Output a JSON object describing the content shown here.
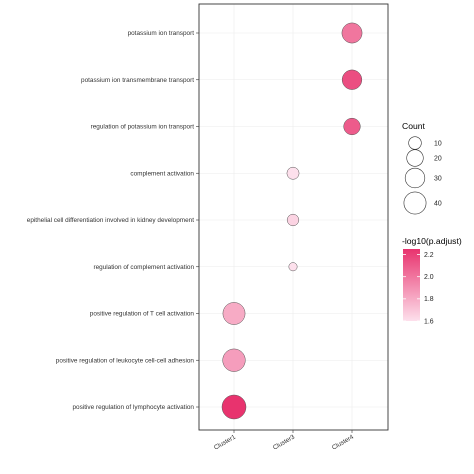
{
  "chart_data": {
    "type": "scatter",
    "chart_kind": "dotplot",
    "title": "",
    "xlabel": "",
    "ylabel": "",
    "x_categories": [
      "Cluster1",
      "Cluster3",
      "Cluster4"
    ],
    "y_categories": [
      "potassium ion transport",
      "potassium ion transmembrane transport",
      "regulation of potassium ion transport",
      "complement activation",
      "epithelial cell differentiation involved in kidney development",
      "regulation of complement activation",
      "positive regulation of T cell activation",
      "positive regulation of leukocyte cell-cell adhesion",
      "positive regulation of lymphocyte activation"
    ],
    "points": [
      {
        "x": "Cluster4",
        "y": "potassium ion transport",
        "count": 32,
        "neg_log10_padj": 2.0
      },
      {
        "x": "Cluster4",
        "y": "potassium ion transmembrane transport",
        "count": 30,
        "neg_log10_padj": 2.15
      },
      {
        "x": "Cluster4",
        "y": "regulation of potassium ion transport",
        "count": 20,
        "neg_log10_padj": 2.1
      },
      {
        "x": "Cluster3",
        "y": "complement activation",
        "count": 9,
        "neg_log10_padj": 1.6
      },
      {
        "x": "Cluster3",
        "y": "epithelial cell differentiation involved in kidney development",
        "count": 8,
        "neg_log10_padj": 1.65
      },
      {
        "x": "Cluster3",
        "y": "regulation of complement activation",
        "count": 3,
        "neg_log10_padj": 1.6
      },
      {
        "x": "Cluster1",
        "y": "positive regulation of T cell activation",
        "count": 40,
        "neg_log10_padj": 1.8
      },
      {
        "x": "Cluster1",
        "y": "positive regulation of leukocyte cell-cell adhesion",
        "count": 42,
        "neg_log10_padj": 1.85
      },
      {
        "x": "Cluster1",
        "y": "positive regulation of lymphocyte activation",
        "count": 48,
        "neg_log10_padj": 2.25
      }
    ],
    "size_legend": {
      "title": "Count",
      "values": [
        10,
        20,
        30,
        40
      ]
    },
    "color_legend": {
      "title": "-log10(p.adjust)",
      "ticks": [
        2.2,
        2.0,
        1.8,
        1.6
      ],
      "range": [
        1.6,
        2.25
      ],
      "color_low": "#fde0ec",
      "color_high": "#e8336e"
    },
    "grid": true,
    "legend_position": "right"
  }
}
